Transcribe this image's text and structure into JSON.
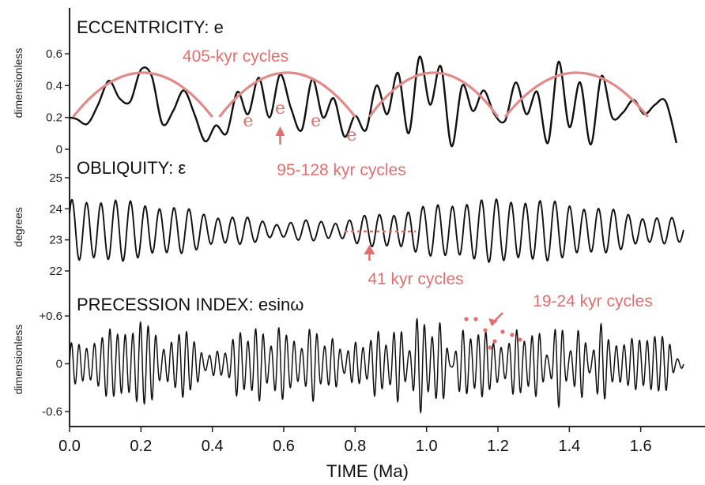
{
  "chart_data": [
    {
      "type": "line",
      "title": "ECCENTRICITY: e",
      "ylabel": "dimensionless",
      "yticks": [
        "0",
        "0.2",
        "0.4",
        "0.6"
      ],
      "ylim": [
        0,
        0.65
      ],
      "xlim": [
        0,
        1.7
      ],
      "series": [
        {
          "x": [
            0,
            0.02,
            0.05,
            0.08,
            0.11,
            0.14,
            0.17,
            0.2,
            0.23,
            0.26,
            0.29,
            0.32,
            0.35,
            0.38,
            0.41,
            0.44,
            0.47,
            0.5,
            0.53,
            0.56,
            0.59,
            0.62,
            0.65,
            0.68,
            0.71,
            0.74,
            0.77,
            0.8,
            0.83,
            0.86,
            0.89,
            0.92,
            0.95,
            0.98,
            1.01,
            1.04,
            1.07,
            1.1,
            1.13,
            1.16,
            1.19,
            1.22,
            1.25,
            1.28,
            1.31,
            1.34,
            1.37,
            1.4,
            1.43,
            1.46,
            1.49,
            1.52,
            1.55,
            1.58,
            1.61,
            1.64,
            1.67,
            1.7
          ],
          "values": [
            0.2,
            0.19,
            0.16,
            0.28,
            0.43,
            0.32,
            0.3,
            0.5,
            0.46,
            0.16,
            0.24,
            0.37,
            0.22,
            0.05,
            0.15,
            0.1,
            0.36,
            0.22,
            0.45,
            0.2,
            0.47,
            0.26,
            0.12,
            0.44,
            0.2,
            0.32,
            0.08,
            0.21,
            0.12,
            0.4,
            0.22,
            0.48,
            0.1,
            0.58,
            0.28,
            0.52,
            0.02,
            0.4,
            0.24,
            0.37,
            0.22,
            0.18,
            0.42,
            0.22,
            0.36,
            0.04,
            0.55,
            0.14,
            0.42,
            0.03,
            0.46,
            0.2,
            0.23,
            0.31,
            0.22,
            0.28,
            0.3,
            0.04
          ]
        }
      ],
      "annotations": [
        {
          "text": "405-kyr cycles"
        },
        {
          "text": "95-128 kyr cycles"
        },
        {
          "text": "e"
        }
      ]
    },
    {
      "type": "line",
      "title": "OBLIQUITY: ε",
      "ylabel": "degrees",
      "yticks": [
        "22",
        "23",
        "24",
        "25"
      ],
      "ylim": [
        22,
        25
      ],
      "xlim": [
        0,
        1.7
      ],
      "series": [
        {
          "period_Ma": 0.041,
          "mean": 23.3,
          "amplitude_range": [
            0.25,
            0.95
          ]
        }
      ],
      "annotations": [
        {
          "text": "41 kyr cycles"
        }
      ]
    },
    {
      "type": "line",
      "title": "PRECESSION INDEX: esinω",
      "ylabel": "dimensionless",
      "yticks": [
        "-0.6",
        "0",
        "+0.6"
      ],
      "ylim": [
        -0.65,
        0.65
      ],
      "xlim": [
        0,
        1.7
      ],
      "xticks": [
        "0.0",
        "0.2",
        "0.4",
        "0.6",
        "0.8",
        "1.0",
        "1.2",
        "1.4",
        "1.6"
      ],
      "xlabel": "TIME (Ma)",
      "series": [
        {
          "period_Ma": 0.0215,
          "envelope": "eccentricity"
        }
      ],
      "annotations": [
        {
          "text": "19-24 kyr cycles"
        }
      ]
    }
  ],
  "colors": {
    "data_line": "#111111",
    "annotation": "#e07070",
    "arc": "#e08a8a",
    "axis": "#222222"
  }
}
